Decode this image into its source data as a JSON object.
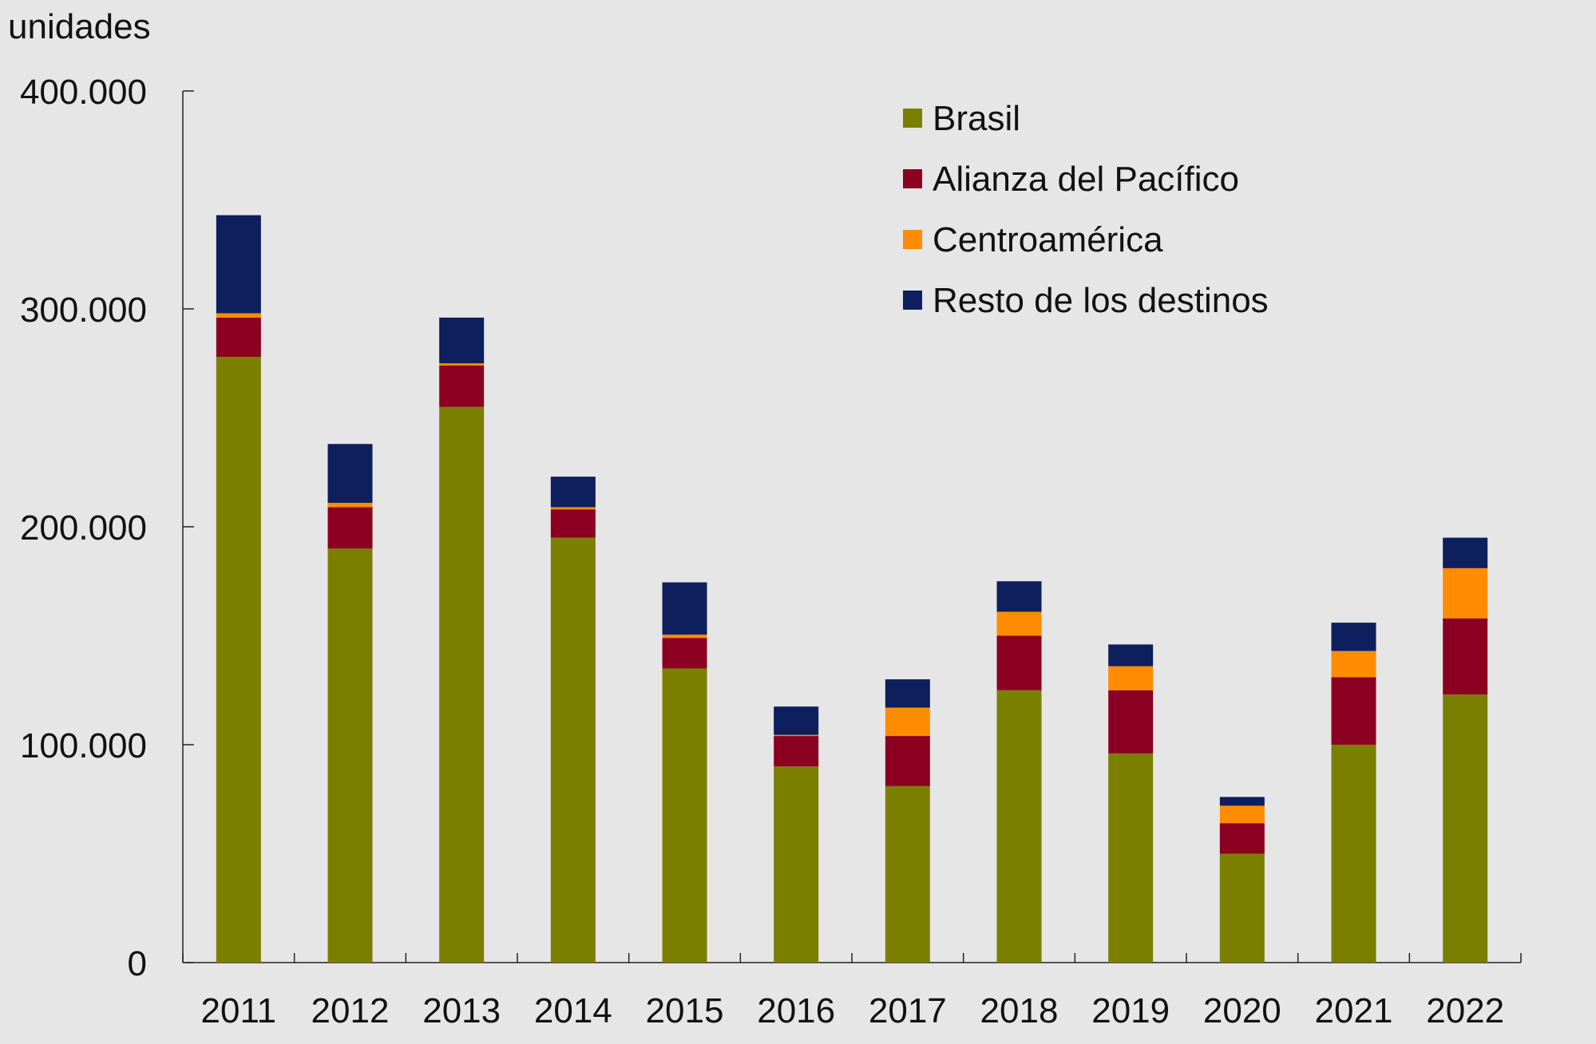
{
  "chart_data": {
    "type": "bar",
    "stacked": true,
    "ylabel": "unidades",
    "ylim": [
      0,
      400000
    ],
    "yticks": [
      0,
      100000,
      200000,
      300000,
      400000
    ],
    "ytick_labels": [
      "0",
      "100.000",
      "200.000",
      "300.000",
      "400.000"
    ],
    "categories": [
      "2011",
      "2012",
      "2013",
      "2014",
      "2015",
      "2016",
      "2017",
      "2018",
      "2019",
      "2020",
      "2021",
      "2022"
    ],
    "legend_position": "top-right",
    "series": [
      {
        "name": "Brasil",
        "color": "#7a7f00",
        "values": [
          278000,
          190000,
          255000,
          195000,
          135000,
          90000,
          81000,
          125000,
          96000,
          50000,
          100000,
          123000
        ]
      },
      {
        "name": "Alianza del Pacífico",
        "color": "#8b0021",
        "values": [
          18000,
          19000,
          19000,
          13000,
          14000,
          14000,
          23000,
          25000,
          29000,
          14000,
          31000,
          35000
        ]
      },
      {
        "name": "Centroamérica",
        "color": "#ff8c00",
        "values": [
          2000,
          2000,
          1000,
          1000,
          1500,
          500,
          13000,
          11000,
          11000,
          8000,
          12000,
          23000
        ]
      },
      {
        "name": "Resto de los destinos",
        "color": "#0d1f5c",
        "values": [
          45000,
          27000,
          21000,
          14000,
          24000,
          13000,
          13000,
          14000,
          10000,
          4000,
          13000,
          14000
        ]
      }
    ]
  }
}
